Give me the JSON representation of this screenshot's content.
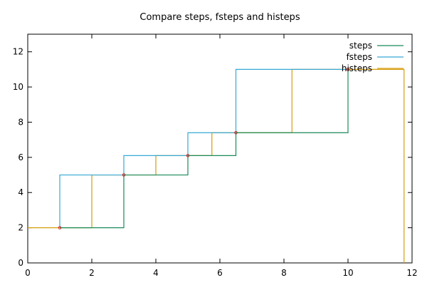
{
  "chart_data": {
    "type": "line",
    "title": "Compare steps, fsteps and histeps",
    "xlabel": "",
    "ylabel": "",
    "xlim": [
      0,
      12
    ],
    "ylim": [
      0,
      13
    ],
    "x_ticks": [
      0,
      2,
      4,
      6,
      8,
      10,
      12
    ],
    "y_ticks": [
      0,
      2,
      4,
      6,
      8,
      10,
      12
    ],
    "legend_position": "top-right",
    "points": {
      "x": [
        1,
        3,
        5,
        6.5,
        10
      ],
      "y": [
        2,
        5,
        6.1,
        7.4,
        11
      ],
      "color": "#d62728"
    },
    "series": [
      {
        "name": "steps",
        "style": "steps",
        "color": "#1a8a5a"
      },
      {
        "name": "fsteps",
        "style": "fsteps",
        "color": "#36a9d6"
      },
      {
        "name": "histeps",
        "style": "histeps",
        "color": "#d69d0f"
      }
    ]
  }
}
